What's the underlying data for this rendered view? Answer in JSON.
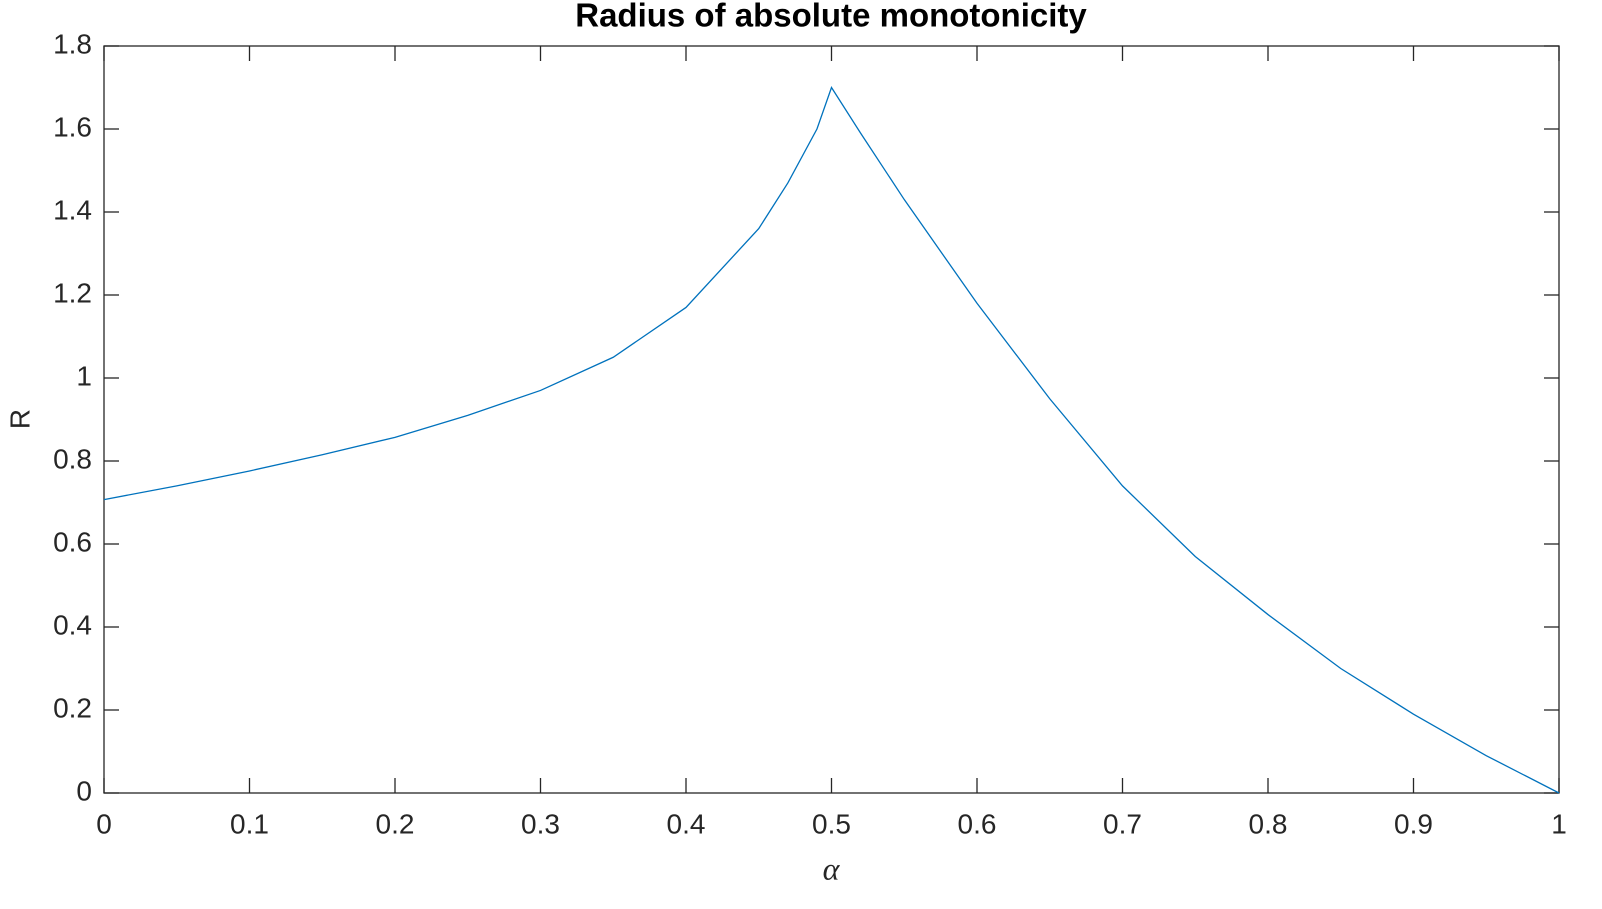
{
  "chart_data": {
    "type": "line",
    "title": "Radius of absolute monotonicity",
    "xlabel": "α",
    "ylabel": "R",
    "x": [
      0,
      0.05,
      0.1,
      0.15,
      0.2,
      0.25,
      0.3,
      0.35,
      0.4,
      0.45,
      0.47,
      0.49,
      0.5,
      0.52,
      0.55,
      0.6,
      0.65,
      0.7,
      0.75,
      0.8,
      0.85,
      0.9,
      0.95,
      1
    ],
    "series": [
      {
        "color": "#0072bd",
        "values": [
          0.707,
          0.74,
          0.776,
          0.815,
          0.857,
          0.91,
          0.97,
          1.05,
          1.17,
          1.36,
          1.47,
          1.6,
          1.7,
          1.59,
          1.43,
          1.18,
          0.95,
          0.74,
          0.57,
          0.43,
          0.3,
          0.19,
          0.09,
          0
        ]
      }
    ],
    "xlim": [
      0,
      1
    ],
    "xticks": [
      0,
      0.1,
      0.2,
      0.3,
      0.4,
      0.5,
      0.6,
      0.7,
      0.8,
      0.9,
      1
    ],
    "ylim": [
      0,
      1.8
    ],
    "yticks": [
      0,
      0.2,
      0.4,
      0.6,
      0.8,
      1,
      1.2,
      1.4,
      1.6,
      1.8
    ],
    "grid": false
  }
}
